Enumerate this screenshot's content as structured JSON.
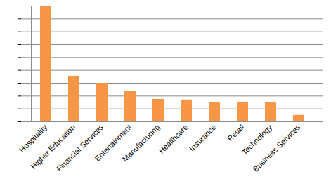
{
  "chart_data": {
    "type": "bar",
    "categories": [
      "Hospitality",
      "Higher Education",
      "Financial Services",
      "Entertainment",
      "Manufacturing",
      "Healthcare",
      "Insurance",
      "Retail",
      "Technology",
      "Business Services"
    ],
    "values": [
      9,
      3.55,
      3,
      2.35,
      1.75,
      1.7,
      1.5,
      1.5,
      1.5,
      0.5
    ],
    "color": "#f79646",
    "ylim": [
      0,
      9
    ],
    "yticks": [
      0,
      1,
      2,
      3,
      4,
      5,
      6,
      7,
      8,
      9
    ],
    "grid": true,
    "tick_labels": "x"
  }
}
